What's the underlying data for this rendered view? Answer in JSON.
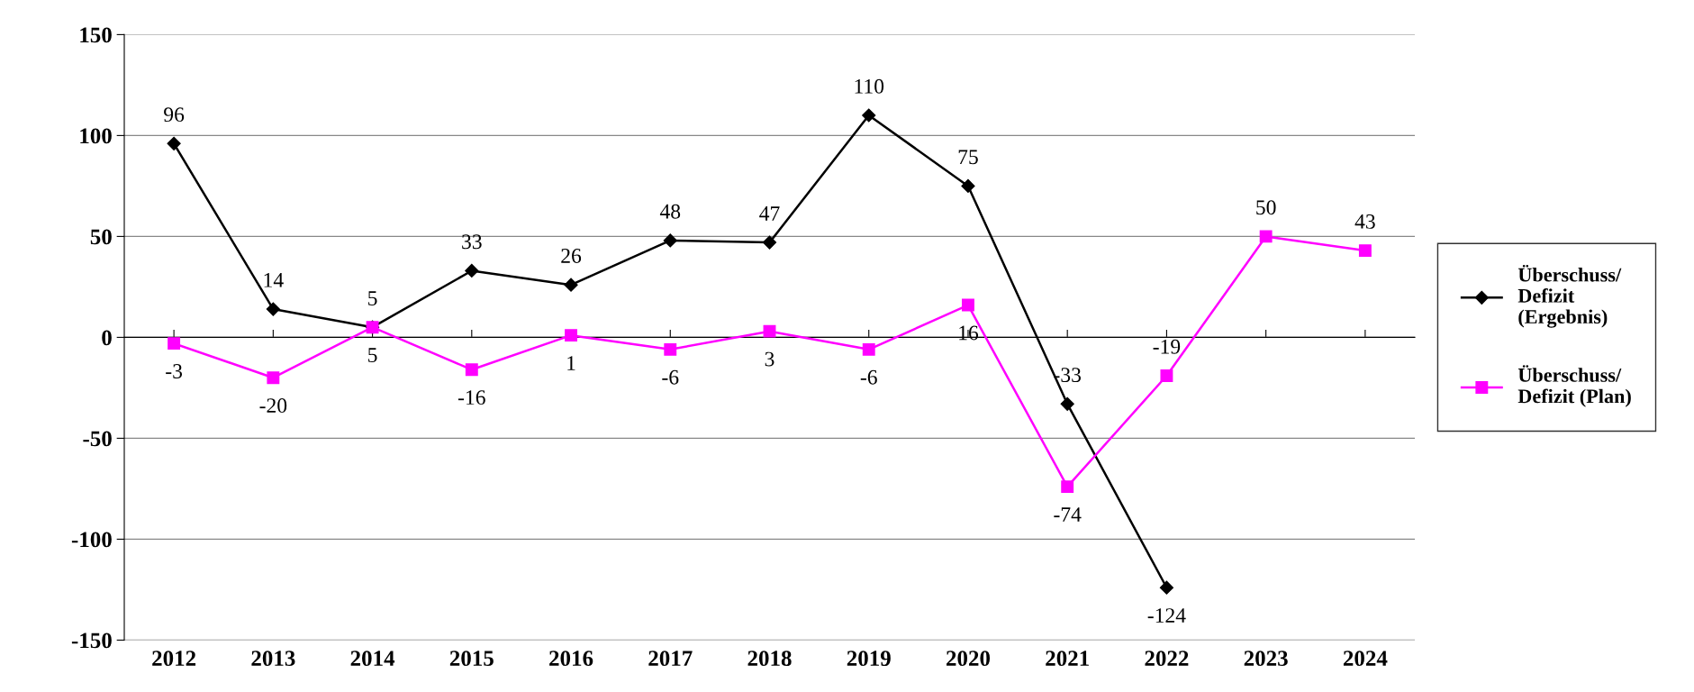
{
  "chart_data": {
    "type": "line",
    "categories": [
      "2012",
      "2013",
      "2014",
      "2015",
      "2016",
      "2017",
      "2018",
      "2019",
      "2020",
      "2021",
      "2022",
      "2023",
      "2024"
    ],
    "series": [
      {
        "name": "Überschuss/\nDefizit\n(Ergebnis)",
        "color": "#000000",
        "marker": "diamond",
        "values": [
          96,
          14,
          5,
          33,
          26,
          48,
          47,
          110,
          75,
          -33,
          -124,
          null,
          null
        ]
      },
      {
        "name": "Überschuss/\nDefizit (Plan)",
        "color": "#ff00ff",
        "marker": "square",
        "values": [
          -3,
          -20,
          5,
          -16,
          1,
          -6,
          3,
          -6,
          16,
          -74,
          -19,
          50,
          43
        ]
      }
    ],
    "ylim": [
      -150,
      150
    ],
    "yticks": [
      -150,
      -100,
      -50,
      0,
      50,
      100,
      150
    ],
    "grid": "y",
    "legend": "right",
    "data_labels": true
  }
}
